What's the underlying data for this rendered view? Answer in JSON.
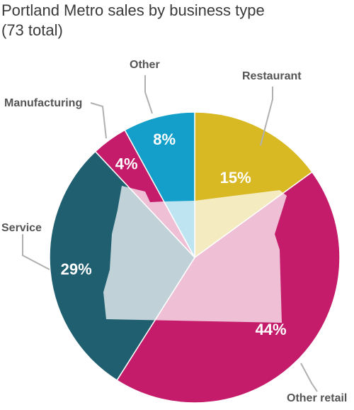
{
  "chart_data": {
    "type": "pie",
    "title": "Portland Metro sales by business type",
    "subtitle": "(73 total)",
    "categories": [
      "Restaurant",
      "Other retail",
      "Service",
      "Manufacturing",
      "Other"
    ],
    "values": [
      15,
      44,
      29,
      4,
      8
    ],
    "value_labels": [
      "15%",
      "44%",
      "29%",
      "4%",
      "8%"
    ],
    "colors": [
      "#d8b823",
      "#c41c6b",
      "#1f5f70",
      "#c41c6b",
      "#139fca"
    ]
  }
}
